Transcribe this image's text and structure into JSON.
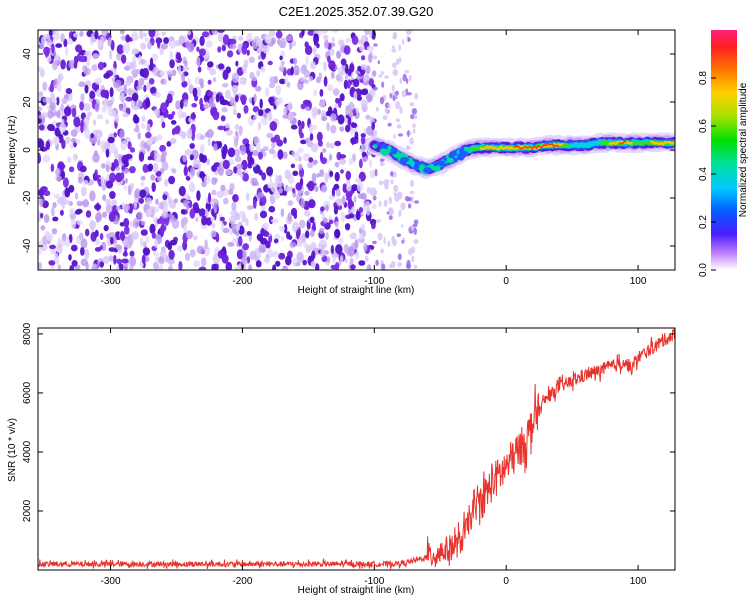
{
  "figure_title": "C2E1.2025.352.07.39.G20",
  "colors": {
    "line": "#e8322c",
    "speckle_strong": "#6a1fd6",
    "speckle_weak": "#c7aef2",
    "frame": "#000000"
  },
  "chart_data": [
    {
      "type": "heatmap",
      "title": "",
      "xlabel": "Height of straight line (km)",
      "ylabel": "Frequency (Hz)",
      "xlim": [
        -355,
        128
      ],
      "ylim": [
        -50,
        50
      ],
      "xticks": [
        -300,
        -200,
        -100,
        0,
        100
      ],
      "yticks": [
        -40,
        -20,
        0,
        20,
        40
      ],
      "colorbar": {
        "label": "Normalized spectral amplitude",
        "range": [
          0,
          1
        ],
        "ticks": [
          "0.0",
          "0.2",
          "0.4",
          "0.6",
          "0.8"
        ],
        "tick_values": [
          0,
          0.2,
          0.4,
          0.6,
          0.8
        ],
        "colormap": [
          "#ffffff",
          "#8a2be2",
          "#3a3aff",
          "#00b8ff",
          "#00e6b0",
          "#00e000",
          "#a0e000",
          "#ffd000",
          "#ff7a00",
          "#ff2020",
          "#ff2080"
        ]
      },
      "noise_region": {
        "x_from": -355,
        "x_dense_to": -100,
        "x_sparse_to": -68
      },
      "signal_track": {
        "x": [
          -100,
          -90,
          -80,
          -70,
          -60,
          -50,
          -40,
          -30,
          -20,
          -10,
          0,
          10,
          20,
          30,
          40,
          50,
          60,
          70,
          80,
          90,
          100,
          110,
          120,
          128
        ],
        "freq": [
          2,
          0,
          -3,
          -6,
          -8,
          -6,
          -3,
          0,
          1,
          1,
          1,
          1,
          1,
          2,
          2,
          2,
          2,
          3,
          3,
          3,
          3,
          3,
          3,
          3
        ],
        "amplitude": [
          0.3,
          0.45,
          0.5,
          0.55,
          0.6,
          0.5,
          0.55,
          0.7,
          0.8,
          0.85,
          0.85,
          0.9,
          0.95,
          0.95,
          0.9,
          0.6,
          0.5,
          0.6,
          0.85,
          0.9,
          0.7,
          0.8,
          0.85,
          0.85
        ]
      }
    },
    {
      "type": "line",
      "title": "",
      "xlabel": "Height of straight line (km)",
      "ylabel": "SNR (10 * v/v)",
      "xlim": [
        -355,
        128
      ],
      "ylim": [
        0,
        8200
      ],
      "xticks": [
        -300,
        -200,
        -100,
        0,
        100
      ],
      "yticks": [
        2000,
        4000,
        6000,
        8000
      ],
      "series": [
        {
          "name": "SNR",
          "x": [
            -355,
            -300,
            -250,
            -200,
            -150,
            -120,
            -100,
            -80,
            -70,
            -60,
            -50,
            -40,
            -35,
            -30,
            -25,
            -20,
            -15,
            -10,
            -5,
            0,
            5,
            10,
            15,
            20,
            30,
            40,
            50,
            60,
            70,
            80,
            90,
            95,
            100,
            110,
            120,
            128
          ],
          "y": [
            200,
            200,
            200,
            200,
            200,
            200,
            200,
            220,
            300,
            450,
            600,
            800,
            900,
            1400,
            2000,
            2300,
            2600,
            3000,
            3200,
            3500,
            3800,
            4100,
            4400,
            5000,
            5800,
            6200,
            6400,
            6600,
            6750,
            6900,
            7050,
            6800,
            7200,
            7500,
            7800,
            8000
          ]
        }
      ]
    }
  ]
}
